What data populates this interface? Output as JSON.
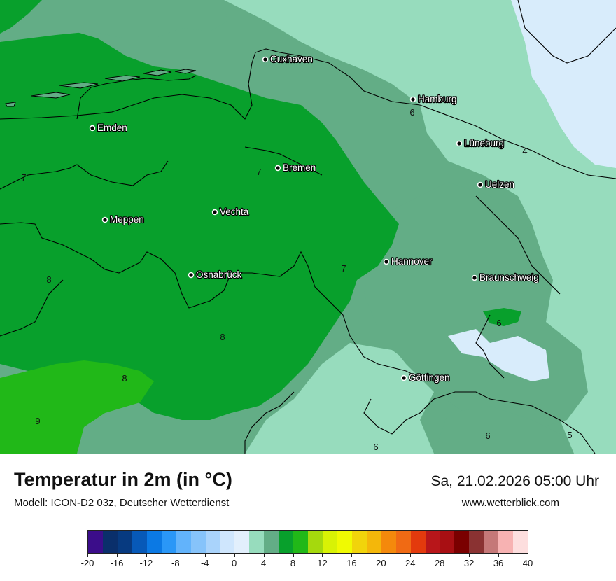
{
  "map": {
    "cities": [
      {
        "name": "Cuxhaven"
      },
      {
        "name": "Hamburg"
      },
      {
        "name": "Emden"
      },
      {
        "name": "Lüneburg"
      },
      {
        "name": "Bremen"
      },
      {
        "name": "Uelzen"
      },
      {
        "name": "Vechta"
      },
      {
        "name": "Meppen"
      },
      {
        "name": "Hannover"
      },
      {
        "name": "Osnabrück"
      },
      {
        "name": "Braunschweig"
      },
      {
        "name": "Göttingen"
      }
    ],
    "isoline_labels": [
      "6",
      "4",
      "7",
      "7",
      "7",
      "8",
      "6",
      "8",
      "8",
      "9",
      "6",
      "6",
      "5"
    ],
    "field_colors": {
      "c2": "#d8ecfb",
      "c4": "#97dcbd",
      "c6": "#63ad86",
      "c8": "#08a02c",
      "c10": "#21b818",
      "water": "#ffffff"
    }
  },
  "legend": {
    "title": "Temperatur in 2m (in °C)",
    "model": "Modell: ICON-D2 03z, Deutscher Wetterdienst",
    "datetime": "Sa, 21.02.2026 05:00 Uhr",
    "website": "www.wetterblick.com",
    "colors": [
      "#3b0d8a",
      "#0a2f6b",
      "#073a80",
      "#0759b8",
      "#0b79e4",
      "#2a97f7",
      "#62b3fb",
      "#86c3fa",
      "#a9d3fb",
      "#cfe6fd",
      "#e2effc",
      "#97dcbd",
      "#63ad86",
      "#08a02c",
      "#21b818",
      "#a5d90d",
      "#d8f205",
      "#f0fa02",
      "#f1d40b",
      "#f4b70a",
      "#f4890c",
      "#f06a14",
      "#e33a0d",
      "#b8161a",
      "#a80f13",
      "#7a0000",
      "#8a3232",
      "#c57878",
      "#f7b2b2",
      "#fddede"
    ],
    "ticks": [
      "-20",
      "-16",
      "-12",
      "-8",
      "-4",
      "0",
      "4",
      "8",
      "12",
      "16",
      "20",
      "24",
      "28",
      "32",
      "36",
      "40"
    ]
  }
}
